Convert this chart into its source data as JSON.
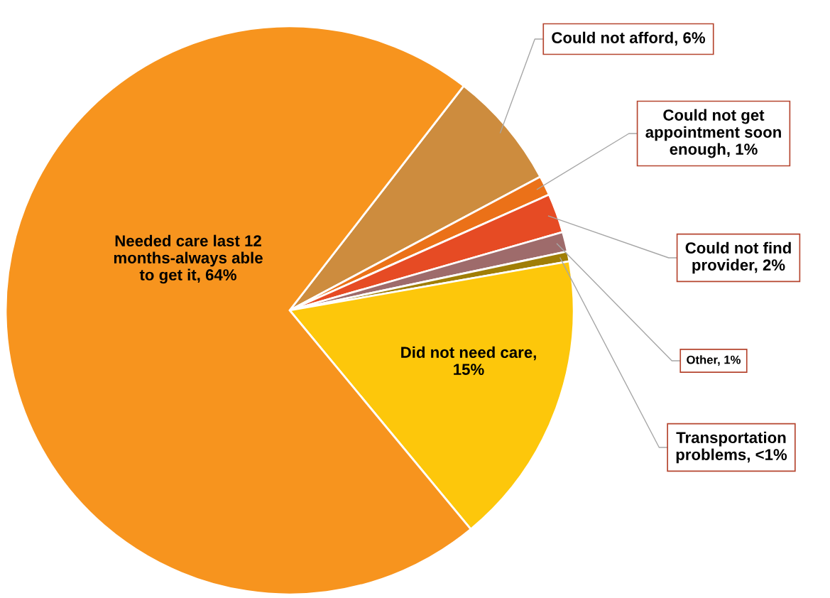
{
  "chart_data": {
    "type": "pie",
    "categories": [
      "Could not afford, 6%",
      "Could not get appointment soon enough, 1%",
      "Could not find provider, 2%",
      "Other, 1%",
      "Transportation problems, <1%",
      "Did not need care, 15%",
      "Needed care last 12 months-always able to get it, 64%"
    ],
    "values": [
      6,
      1,
      2,
      1,
      0.5,
      15,
      64
    ],
    "colors": [
      "#cd8c3e",
      "#eb7118",
      "#e64b24",
      "#9e6b6b",
      "#a07e06",
      "#fdc70b",
      "#f7941e"
    ],
    "legend": false
  }
}
